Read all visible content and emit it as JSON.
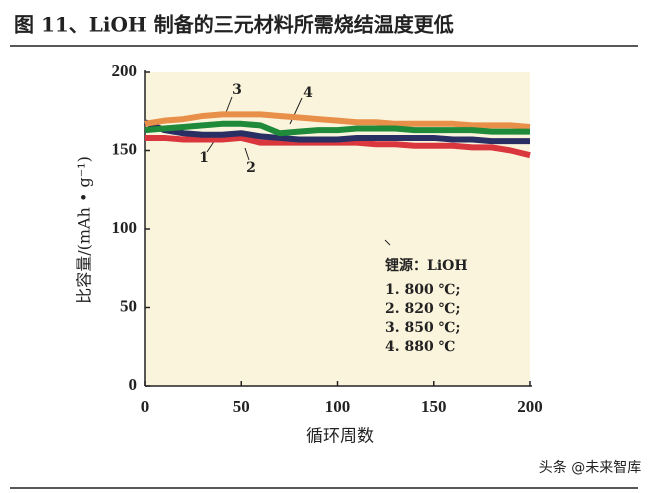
{
  "chart_data": {
    "type": "line",
    "title": "图 11、LiOH 制备的三元材料所需烧结温度更低",
    "x_label": "循环周数",
    "y_label": "比容量/(mAh • g⁻¹)",
    "x": [
      0,
      10,
      20,
      30,
      40,
      50,
      60,
      70,
      80,
      90,
      100,
      110,
      120,
      130,
      140,
      150,
      160,
      170,
      180,
      190,
      200
    ],
    "series": [
      {
        "name": "1",
        "color": "#d9363e",
        "values": [
          158,
          158,
          157,
          157,
          157,
          158,
          155,
          155,
          155,
          155,
          155,
          155,
          154,
          154,
          153,
          153,
          153,
          152,
          152,
          150,
          147
        ]
      },
      {
        "name": "2",
        "color": "#2a2f63",
        "values": [
          168,
          163,
          161,
          160,
          160,
          161,
          159,
          158,
          157,
          157,
          157,
          158,
          158,
          158,
          158,
          158,
          157,
          157,
          156,
          156,
          156
        ]
      },
      {
        "name": "3",
        "color": "#e8904a",
        "values": [
          167,
          169,
          170,
          172,
          173,
          173,
          173,
          172,
          171,
          170,
          169,
          168,
          168,
          167,
          167,
          167,
          167,
          166,
          166,
          166,
          165
        ]
      },
      {
        "name": "4",
        "color": "#1e8a3a",
        "values": [
          163,
          164,
          165,
          166,
          167,
          167,
          166,
          161,
          162,
          163,
          163,
          164,
          164,
          164,
          163,
          163,
          163,
          163,
          162,
          162,
          162
        ]
      }
    ],
    "legend_title": "锂源：LiOH",
    "annotations": [
      "1. 800 ℃;",
      "2. 820 ℃;",
      "3. 850 ℃;",
      "4. 880 ℃"
    ],
    "xlim": [
      0,
      200
    ],
    "xticks": [
      0,
      50,
      100,
      150,
      200
    ],
    "ylim": [
      0,
      200
    ],
    "yticks": [
      0,
      50,
      100,
      150,
      200
    ],
    "watermark": "头条 @未来智库"
  }
}
